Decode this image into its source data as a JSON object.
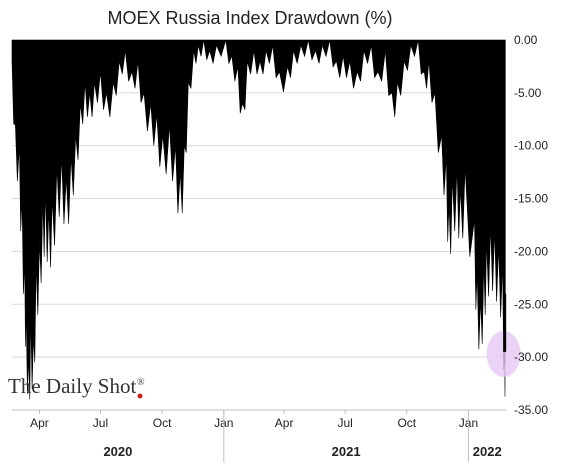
{
  "chart_data": {
    "type": "area",
    "title": "MOEX Russia Index Drawdown (%)",
    "xlabel": "",
    "ylabel": "",
    "ylim": [
      -35,
      0
    ],
    "y_ticks": [
      0,
      -5,
      -10,
      -15,
      -20,
      -25,
      -30,
      -35
    ],
    "y_tick_labels": [
      "0.00",
      "-5.00",
      "-10.00",
      "-15.00",
      "-20.00",
      "-25.00",
      "-30.00",
      "-35.00"
    ],
    "x_range": [
      "2020-02-20",
      "2022-02-26"
    ],
    "x_month_ticks": [
      {
        "label": "Apr",
        "date": "2020-04-01"
      },
      {
        "label": "Jul",
        "date": "2020-07-01"
      },
      {
        "label": "Oct",
        "date": "2020-10-01"
      },
      {
        "label": "Jan",
        "date": "2021-01-01"
      },
      {
        "label": "Apr",
        "date": "2021-04-01"
      },
      {
        "label": "Jul",
        "date": "2021-07-01"
      },
      {
        "label": "Oct",
        "date": "2021-10-01"
      },
      {
        "label": "Jan",
        "date": "2022-01-01"
      }
    ],
    "x_years": [
      {
        "label": "2020",
        "from": "2020-02-20",
        "to": "2021-01-01"
      },
      {
        "label": "2021",
        "from": "2021-01-01",
        "to": "2022-01-01"
      },
      {
        "label": "2022",
        "from": "2022-01-01",
        "to": "2022-02-26"
      }
    ],
    "grid": true,
    "legend": "none",
    "fill_color": "#000000",
    "highlight_color": "#e6c8f5",
    "highlight_point": {
      "date": "2022-02-24",
      "value": -29.5
    },
    "series": [
      {
        "points": [
          [
            "2020-02-20",
            -2
          ],
          [
            "2020-02-25",
            -8
          ],
          [
            "2020-03-02",
            -10
          ],
          [
            "2020-03-06",
            -15
          ],
          [
            "2020-03-10",
            -21
          ],
          [
            "2020-03-12",
            -25
          ],
          [
            "2020-03-16",
            -30
          ],
          [
            "2020-03-19",
            -26
          ],
          [
            "2020-03-23",
            -28
          ],
          [
            "2020-03-27",
            -21
          ],
          [
            "2020-04-01",
            -19
          ],
          [
            "2020-04-06",
            -15
          ],
          [
            "2020-04-10",
            -14
          ],
          [
            "2020-04-15",
            -16
          ],
          [
            "2020-04-20",
            -15
          ],
          [
            "2020-04-27",
            -12
          ],
          [
            "2020-05-04",
            -11
          ],
          [
            "2020-05-11",
            -13
          ],
          [
            "2020-05-18",
            -11
          ],
          [
            "2020-05-25",
            -9
          ],
          [
            "2020-06-01",
            -6
          ],
          [
            "2020-06-08",
            -4
          ],
          [
            "2020-06-15",
            -5
          ],
          [
            "2020-06-22",
            -4
          ],
          [
            "2020-07-01",
            -3
          ],
          [
            "2020-07-10",
            -5
          ],
          [
            "2020-07-20",
            -4
          ],
          [
            "2020-07-29",
            -2
          ],
          [
            "2020-08-07",
            -1
          ],
          [
            "2020-08-17",
            -3
          ],
          [
            "2020-08-26",
            -2
          ],
          [
            "2020-09-04",
            -5
          ],
          [
            "2020-09-14",
            -6
          ],
          [
            "2020-09-23",
            -7
          ],
          [
            "2020-10-02",
            -9
          ],
          [
            "2020-10-12",
            -8
          ],
          [
            "2020-10-21",
            -10
          ],
          [
            "2020-10-28",
            -12.5
          ],
          [
            "2020-11-03",
            -10
          ],
          [
            "2020-11-09",
            -4
          ],
          [
            "2020-11-17",
            -1
          ],
          [
            "2020-11-24",
            -0.5
          ],
          [
            "2020-12-02",
            0
          ],
          [
            "2020-12-11",
            -1
          ],
          [
            "2020-12-21",
            -0.5
          ],
          [
            "2021-01-04",
            0
          ],
          [
            "2021-01-13",
            -1.5
          ],
          [
            "2021-01-22",
            -2.5
          ],
          [
            "2021-01-29",
            -6
          ],
          [
            "2021-02-05",
            -2
          ],
          [
            "2021-02-15",
            -1
          ],
          [
            "2021-02-24",
            -2
          ],
          [
            "2021-03-05",
            -1
          ],
          [
            "2021-03-15",
            -0.5
          ],
          [
            "2021-03-25",
            -3
          ],
          [
            "2021-04-06",
            -2.5
          ],
          [
            "2021-04-15",
            -1
          ],
          [
            "2021-04-26",
            -0.5
          ],
          [
            "2021-05-07",
            0
          ],
          [
            "2021-05-18",
            -1
          ],
          [
            "2021-05-28",
            -0.5
          ],
          [
            "2021-06-08",
            0
          ],
          [
            "2021-06-18",
            -2
          ],
          [
            "2021-06-28",
            -1.5
          ],
          [
            "2021-07-08",
            -2
          ],
          [
            "2021-07-19",
            -3
          ],
          [
            "2021-07-29",
            -1
          ],
          [
            "2021-08-09",
            -0.5
          ],
          [
            "2021-08-19",
            -3
          ],
          [
            "2021-08-30",
            -1
          ],
          [
            "2021-09-09",
            -5
          ],
          [
            "2021-09-17",
            -4
          ],
          [
            "2021-09-27",
            -2
          ],
          [
            "2021-10-07",
            -0.5
          ],
          [
            "2021-10-18",
            0
          ],
          [
            "2021-10-27",
            -3
          ],
          [
            "2021-11-03",
            -2
          ],
          [
            "2021-11-12",
            -5
          ],
          [
            "2021-11-22",
            -9
          ],
          [
            "2021-11-29",
            -11
          ],
          [
            "2021-12-03",
            -15.5
          ],
          [
            "2021-12-08",
            -13
          ],
          [
            "2021-12-15",
            -12
          ],
          [
            "2021-12-20",
            -14
          ],
          [
            "2021-12-27",
            -12
          ],
          [
            "2022-01-10",
            -17
          ],
          [
            "2022-01-14",
            -22
          ],
          [
            "2022-01-19",
            -24.5
          ],
          [
            "2022-01-24",
            -21
          ],
          [
            "2022-01-28",
            -19
          ],
          [
            "2022-02-03",
            -17.5
          ],
          [
            "2022-02-09",
            -18
          ],
          [
            "2022-02-15",
            -19.5
          ],
          [
            "2022-02-21",
            -21
          ],
          [
            "2022-02-24",
            -29.5
          ],
          [
            "2022-02-25",
            -26
          ]
        ]
      }
    ]
  },
  "brand": {
    "text": "The Daily Shot",
    "reg": "®",
    "dot_color": "#cc1f1f"
  }
}
